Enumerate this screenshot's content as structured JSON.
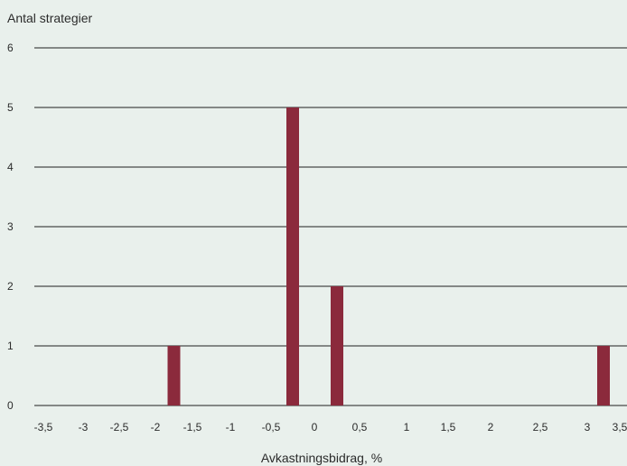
{
  "chart_data": {
    "type": "bar",
    "ylabel": "Antal strategier",
    "xlabel": "Avkastningsbidrag, %",
    "ylim": [
      0,
      6
    ],
    "yticks": [
      "0",
      "1",
      "2",
      "3",
      "4",
      "5",
      "6"
    ],
    "xticks": [
      "-3,5",
      "-3",
      "-2,5",
      "-2",
      "-1,5",
      "-1",
      "-0,5",
      "0",
      "0,5",
      "1",
      "1,5",
      "2",
      "2,5",
      "3",
      "3,5"
    ],
    "grid": true,
    "bar_color": "#8b2a3c",
    "bars": [
      {
        "x": -1.75,
        "value": 1
      },
      {
        "x": -0.25,
        "value": 5
      },
      {
        "x": 0.25,
        "value": 2
      },
      {
        "x": 3.25,
        "value": 1
      }
    ]
  }
}
